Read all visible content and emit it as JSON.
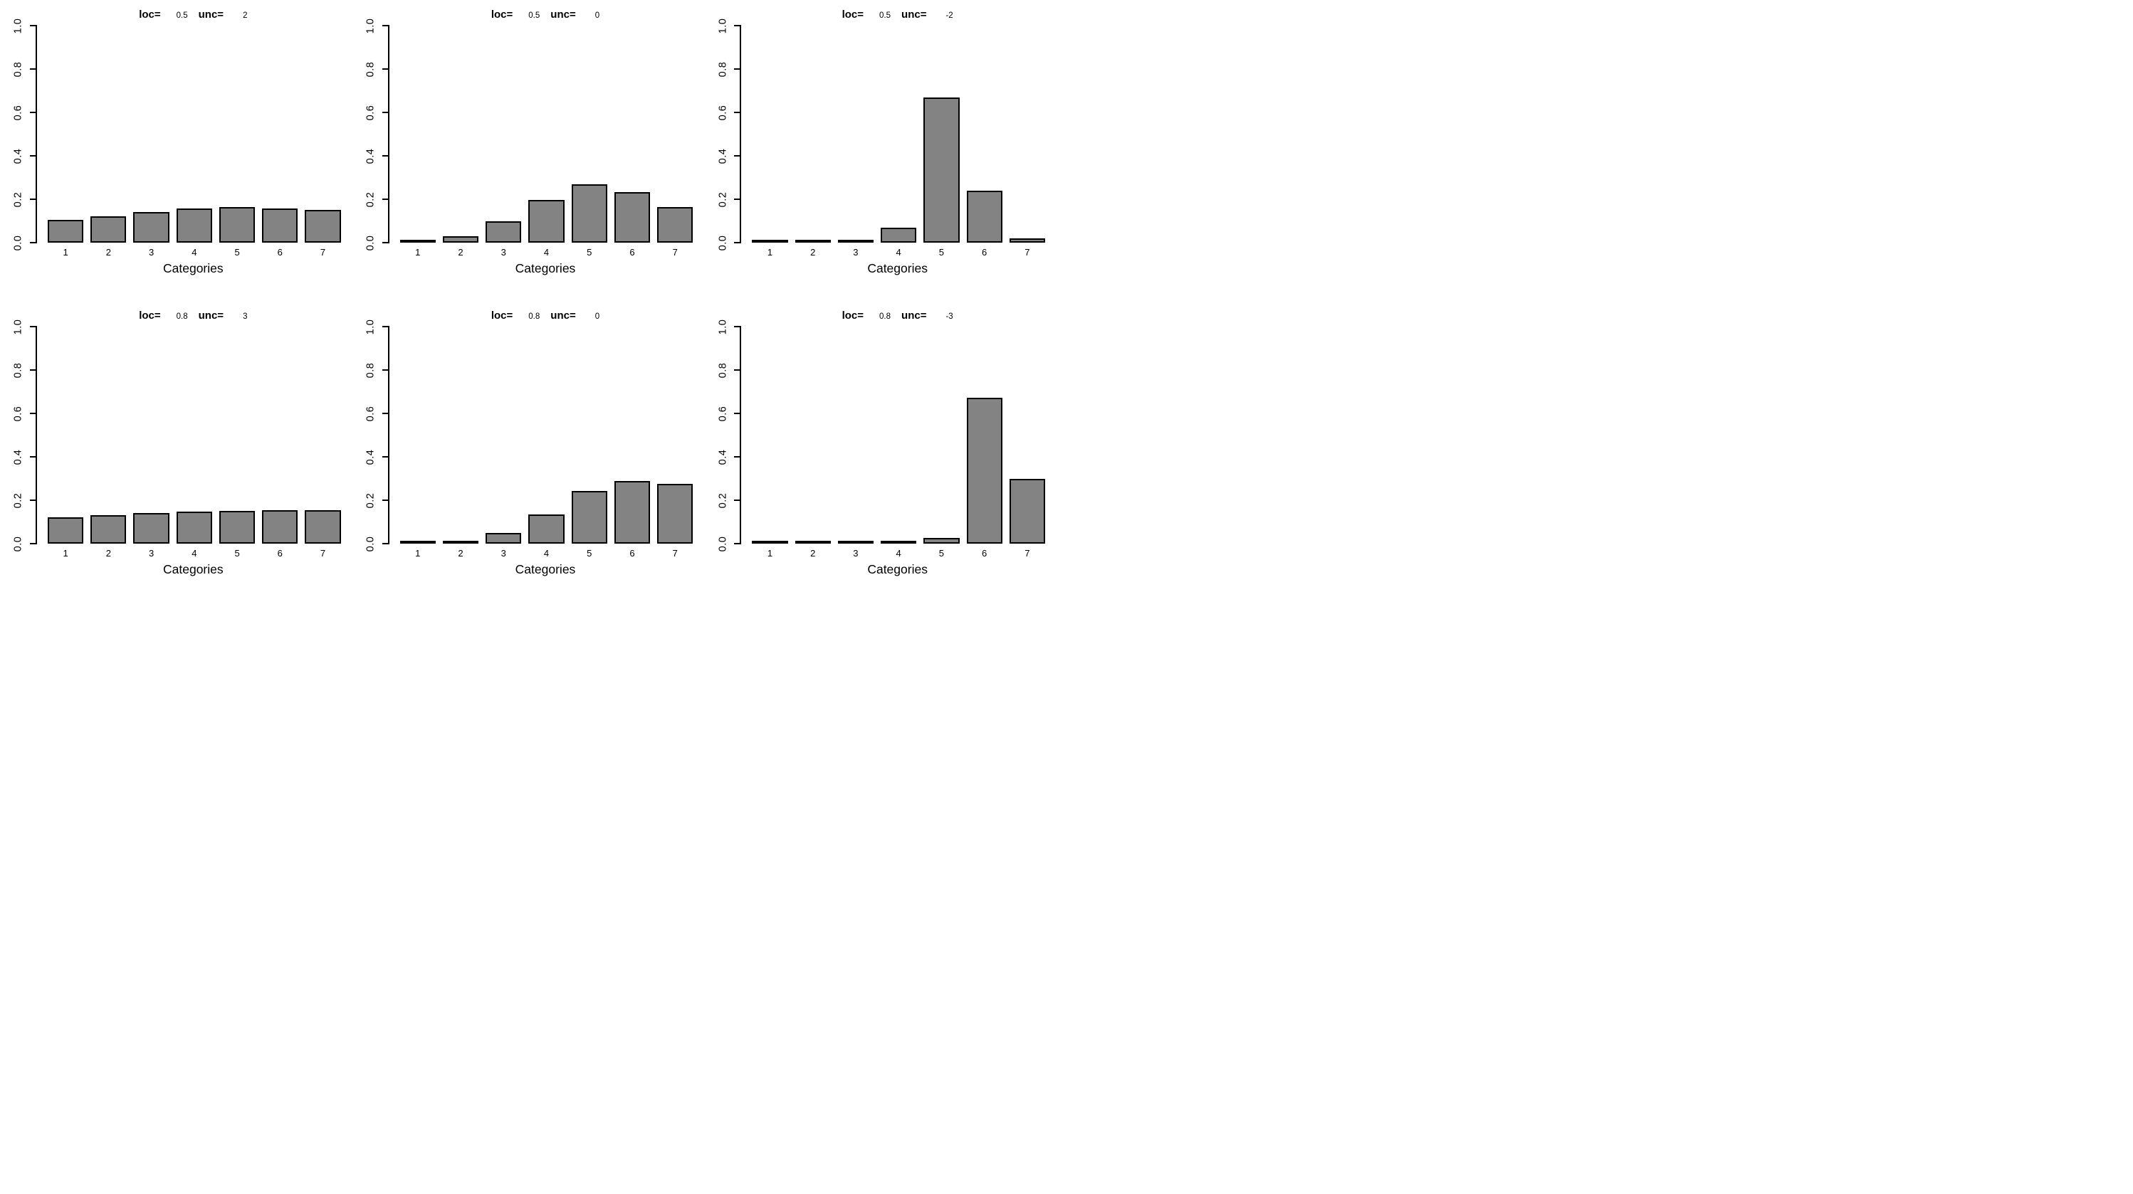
{
  "figure": {
    "background": "#ffffff",
    "bar_fill": "#838383",
    "bar_border": "#000000",
    "axis_color": "#000000",
    "text_color": "#000000",
    "layout": "2x3 grid of barplots"
  },
  "axis": {
    "x_label": "Categories",
    "y_ticks": [
      "0.0",
      "0.2",
      "0.4",
      "0.6",
      "0.8",
      "1.0"
    ],
    "y_min": 0,
    "y_max": 1
  },
  "chart_data": [
    {
      "type": "bar",
      "title": {
        "loc_label": "loc=",
        "loc_value": "0.5",
        "unc_label": "unc=",
        "unc_value": "2"
      },
      "categories": [
        "1",
        "2",
        "3",
        "4",
        "5",
        "6",
        "7"
      ],
      "values": [
        0.104,
        0.122,
        0.142,
        0.156,
        0.163,
        0.159,
        0.151
      ],
      "xlabel": "Categories",
      "ylabel": "",
      "ylim": [
        0,
        1
      ],
      "grid": false,
      "legend": null,
      "bar_color": "#838383"
    },
    {
      "type": "bar",
      "title": {
        "loc_label": "loc=",
        "loc_value": "0.5",
        "unc_label": "unc=",
        "unc_value": "0"
      },
      "categories": [
        "1",
        "2",
        "3",
        "4",
        "5",
        "6",
        "7"
      ],
      "values": [
        0.005,
        0.03,
        0.099,
        0.197,
        0.27,
        0.234,
        0.165
      ],
      "xlabel": "Categories",
      "ylabel": "",
      "ylim": [
        0,
        1
      ],
      "grid": false,
      "legend": null,
      "bar_color": "#838383"
    },
    {
      "type": "bar",
      "title": {
        "loc_label": "loc=",
        "loc_value": "0.5",
        "unc_label": "unc=",
        "unc_value": "-2"
      },
      "categories": [
        "1",
        "2",
        "3",
        "4",
        "5",
        "6",
        "7"
      ],
      "values": [
        0.002,
        0.002,
        0.003,
        0.07,
        0.67,
        0.24,
        0.02
      ],
      "xlabel": "Categories",
      "ylabel": "",
      "ylim": [
        0,
        1
      ],
      "grid": false,
      "legend": null,
      "bar_color": "#838383"
    },
    {
      "type": "bar",
      "title": {
        "loc_label": "loc=",
        "loc_value": "0.8",
        "unc_label": "unc=",
        "unc_value": "3"
      },
      "categories": [
        "1",
        "2",
        "3",
        "4",
        "5",
        "6",
        "7"
      ],
      "values": [
        0.12,
        0.13,
        0.142,
        0.147,
        0.151,
        0.155,
        0.154
      ],
      "xlabel": "Categories",
      "ylabel": "",
      "ylim": [
        0,
        1
      ],
      "grid": false,
      "legend": null,
      "bar_color": "#838383"
    },
    {
      "type": "bar",
      "title": {
        "loc_label": "loc=",
        "loc_value": "0.8",
        "unc_label": "unc=",
        "unc_value": "0"
      },
      "categories": [
        "1",
        "2",
        "3",
        "4",
        "5",
        "6",
        "7"
      ],
      "values": [
        0.002,
        0.01,
        0.048,
        0.133,
        0.243,
        0.288,
        0.274
      ],
      "xlabel": "Categories",
      "ylabel": "",
      "ylim": [
        0,
        1
      ],
      "grid": false,
      "legend": null,
      "bar_color": "#838383"
    },
    {
      "type": "bar",
      "title": {
        "loc_label": "loc=",
        "loc_value": "0.8",
        "unc_label": "unc=",
        "unc_value": "-3"
      },
      "categories": [
        "1",
        "2",
        "3",
        "4",
        "5",
        "6",
        "7"
      ],
      "values": [
        0.001,
        0.001,
        0.002,
        0.003,
        0.025,
        0.672,
        0.3
      ],
      "xlabel": "Categories",
      "ylabel": "",
      "ylim": [
        0,
        1
      ],
      "grid": false,
      "legend": null,
      "bar_color": "#838383"
    }
  ]
}
